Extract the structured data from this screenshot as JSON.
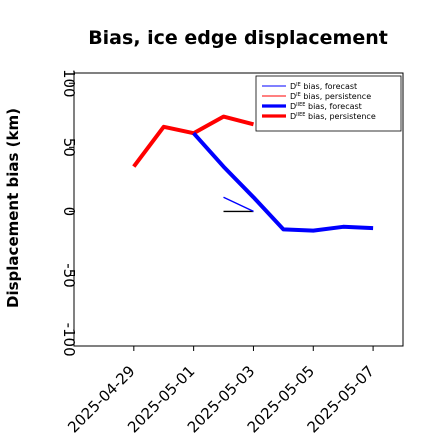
{
  "chart_data": {
    "type": "line",
    "title": "Bias, ice edge displacement",
    "ylabel": "Displacement bias (km)",
    "xlabel": "",
    "ylim": [
      -105,
      108
    ],
    "xlim": [
      "2025-04-27",
      "2025-05-08"
    ],
    "x_ticks": [
      "2025-04-29",
      "2025-05-01",
      "2025-05-03",
      "2025-05-05",
      "2025-05-07"
    ],
    "x_tick_colors": [
      "#228b22",
      "#000000",
      "#000000",
      "#000000",
      "#000000"
    ],
    "y_ticks": [
      100,
      50,
      0,
      -50,
      -100
    ],
    "grid": false,
    "legend": {
      "placement": "top-right",
      "entries": [
        {
          "sup": "IE",
          "label": "bias, forecast",
          "color": "#0000ff",
          "weight": "thin"
        },
        {
          "sup": "IE",
          "label": "bias, persistence",
          "color": "#ff0000",
          "weight": "thin"
        },
        {
          "sup": "IIEE",
          "label": "bias, forecast",
          "color": "#0000ff",
          "weight": "thick"
        },
        {
          "sup": "IIEE",
          "label": "bias, persistence",
          "color": "#ff0000",
          "weight": "thick"
        }
      ]
    },
    "series": [
      {
        "name": "D^IE bias, forecast",
        "color": "#0000ff",
        "weight": "thin",
        "x": [
          "2025-05-02",
          "2025-05-03"
        ],
        "values": [
          11,
          0
        ]
      },
      {
        "name": "D^IE bias, persistence",
        "color": "#ff0000",
        "weight": "thin",
        "x": [],
        "values": []
      },
      {
        "name": "D^IIEE bias, forecast",
        "color": "#0000ff",
        "weight": "thick",
        "x": [
          "2025-05-01",
          "2025-05-02",
          "2025-05-03",
          "2025-05-04",
          "2025-05-05",
          "2025-05-06",
          "2025-05-07"
        ],
        "values": [
          61,
          35,
          11,
          -14,
          -15,
          -12,
          -13
        ]
      },
      {
        "name": "D^IIEE bias, persistence",
        "color": "#ff0000",
        "weight": "thick",
        "x": [
          "2025-04-29",
          "2025-04-30",
          "2025-05-01",
          "2025-05-02",
          "2025-05-03"
        ],
        "values": [
          35,
          66,
          61,
          74,
          68
        ]
      }
    ],
    "extra_lines": [
      {
        "color": "#000000",
        "weight": "thin",
        "x": [
          "2025-05-02",
          "2025-05-03"
        ],
        "values": [
          0,
          0
        ]
      }
    ]
  }
}
